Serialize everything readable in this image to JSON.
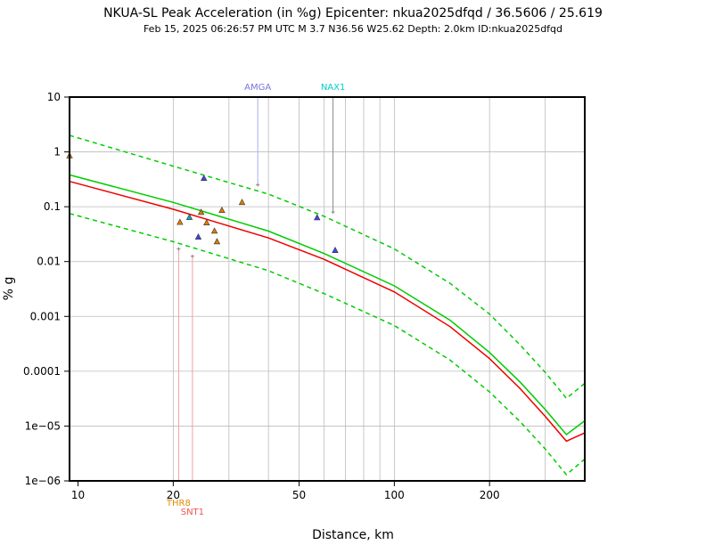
{
  "chart_data": {
    "type": "scatter",
    "title": "NKUA-SL Peak Acceleration (in %g) Epicenter: nkua2025dfqd / 36.5606 / 25.619",
    "subtitle": "Feb 15, 2025 06:26:57 PM UTC   M 3.7   N36.56 W25.62   Depth: 2.0km   ID:nkua2025dfqd",
    "xlabel": "Distance, km",
    "ylabel": "% g",
    "x_scale": "log",
    "y_scale": "log",
    "xlim": [
      9.4,
      400
    ],
    "ylim": [
      1e-06,
      10
    ],
    "x_ticks": [
      {
        "value": 10,
        "label": "10"
      },
      {
        "value": 20,
        "label": "20"
      },
      {
        "value": 50,
        "label": "50"
      },
      {
        "value": 100,
        "label": "100"
      },
      {
        "value": 200,
        "label": "200"
      }
    ],
    "y_ticks": [
      {
        "value": 10,
        "label": "10"
      },
      {
        "value": 1,
        "label": "1"
      },
      {
        "value": 0.1,
        "label": "0.1"
      },
      {
        "value": 0.01,
        "label": "0.01"
      },
      {
        "value": 0.001,
        "label": "0.001"
      },
      {
        "value": 0.0001,
        "label": "0.0001"
      },
      {
        "value": 1e-05,
        "label": "1e−05"
      },
      {
        "value": 1e-06,
        "label": "1e−06"
      }
    ],
    "grid": true,
    "series": [
      {
        "name": "GMPE median (green)",
        "color": "#00cc00",
        "style": "solid",
        "x": [
          9.4,
          20,
          40,
          60,
          100,
          150,
          200,
          250,
          300,
          350,
          400
        ],
        "y": [
          0.38,
          0.12,
          0.036,
          0.014,
          0.0036,
          0.00085,
          0.00022,
          6.3e-05,
          2e-05,
          7e-06,
          1.25e-05
        ]
      },
      {
        "name": "GMPE +1 sigma (green dashed)",
        "color": "#00cc00",
        "style": "dashed",
        "x": [
          9.4,
          20,
          40,
          60,
          100,
          150,
          200,
          250,
          300,
          350,
          400
        ],
        "y": [
          2.0,
          0.55,
          0.17,
          0.067,
          0.017,
          0.004,
          0.0011,
          0.0003,
          9.5e-05,
          3.2e-05,
          6e-05
        ]
      },
      {
        "name": "GMPE -1 sigma (green dashed)",
        "color": "#00cc00",
        "style": "dashed",
        "x": [
          9.4,
          20,
          40,
          60,
          100,
          150,
          200,
          250,
          300,
          350,
          400
        ],
        "y": [
          0.075,
          0.023,
          0.0068,
          0.0026,
          0.00068,
          0.00016,
          4.2e-05,
          1.2e-05,
          3.8e-06,
          1.3e-06,
          2.5e-06
        ]
      },
      {
        "name": "Event-corrected (red)",
        "color": "#ee0000",
        "style": "solid",
        "x": [
          9.4,
          20,
          40,
          60,
          100,
          150,
          200,
          250,
          300,
          350,
          400
        ],
        "y": [
          0.29,
          0.09,
          0.027,
          0.011,
          0.0028,
          0.00065,
          0.00017,
          4.8e-05,
          1.5e-05,
          5.3e-06,
          7.5e-06
        ]
      }
    ],
    "points": [
      {
        "x": 9.4,
        "y": 0.85,
        "color": "#e07b00"
      },
      {
        "x": 21.0,
        "y": 0.052,
        "color": "#e07b00"
      },
      {
        "x": 22.5,
        "y": 0.064,
        "color": "#00aaaa"
      },
      {
        "x": 24.5,
        "y": 0.079,
        "color": "#e07b00"
      },
      {
        "x": 25.0,
        "y": 0.33,
        "color": "#4444ee"
      },
      {
        "x": 25.5,
        "y": 0.051,
        "color": "#e07b00"
      },
      {
        "x": 24.0,
        "y": 0.028,
        "color": "#4444ee"
      },
      {
        "x": 27.0,
        "y": 0.036,
        "color": "#e07b00"
      },
      {
        "x": 27.5,
        "y": 0.023,
        "color": "#e07b00"
      },
      {
        "x": 28.5,
        "y": 0.086,
        "color": "#e07b00"
      },
      {
        "x": 33.0,
        "y": 0.12,
        "color": "#e07b00"
      },
      {
        "x": 57.0,
        "y": 0.063,
        "color": "#4444ee"
      },
      {
        "x": 65.0,
        "y": 0.016,
        "color": "#4444ee"
      }
    ],
    "flagged_points": [
      {
        "x": 20.8,
        "y": 0.017,
        "color": "#888888"
      },
      {
        "x": 23.0,
        "y": 0.0125,
        "color": "#888888"
      },
      {
        "x": 37.0,
        "y": 0.25,
        "color": "#888888"
      },
      {
        "x": 64.0,
        "y": 0.08,
        "color": "#888888"
      }
    ],
    "station_labels": [
      {
        "name": "AMGA",
        "x": 37.0,
        "position": "top",
        "color": "#7777dd",
        "line_color": "#aaaaee"
      },
      {
        "name": "NAX1",
        "x": 64.0,
        "position": "top",
        "color": "#00cccc",
        "line_color": "#888888"
      },
      {
        "name": "THR8",
        "x": 20.8,
        "position": "bottom",
        "color": "#e08a00",
        "line_color": "#f0a0a0"
      },
      {
        "name": "SNT1",
        "x": 23.0,
        "position": "bottom",
        "color": "#ee5555",
        "line_color": "#f0a0a0"
      }
    ]
  }
}
